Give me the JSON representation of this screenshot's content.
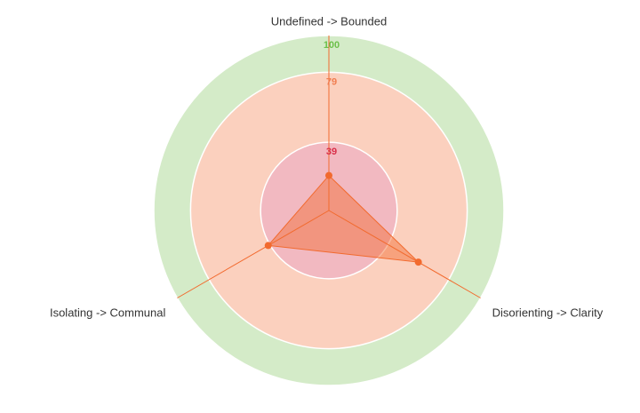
{
  "chart_data": {
    "type": "radar",
    "categories": [
      "Undefined -> Bounded",
      "Disorienting -> Clarity",
      "Isolating -> Communal"
    ],
    "series": [
      {
        "color": "#f26a2e",
        "values": [
          20,
          59,
          40
        ]
      }
    ],
    "ylim": [
      0,
      100
    ],
    "yticks": [
      39,
      79,
      100
    ],
    "band_colors": [
      "#f2b9c1",
      "#fbd0be",
      "#d4ebc8"
    ],
    "tick_colors": [
      "#d9304a",
      "#f07d50",
      "#6cc04a"
    ]
  }
}
